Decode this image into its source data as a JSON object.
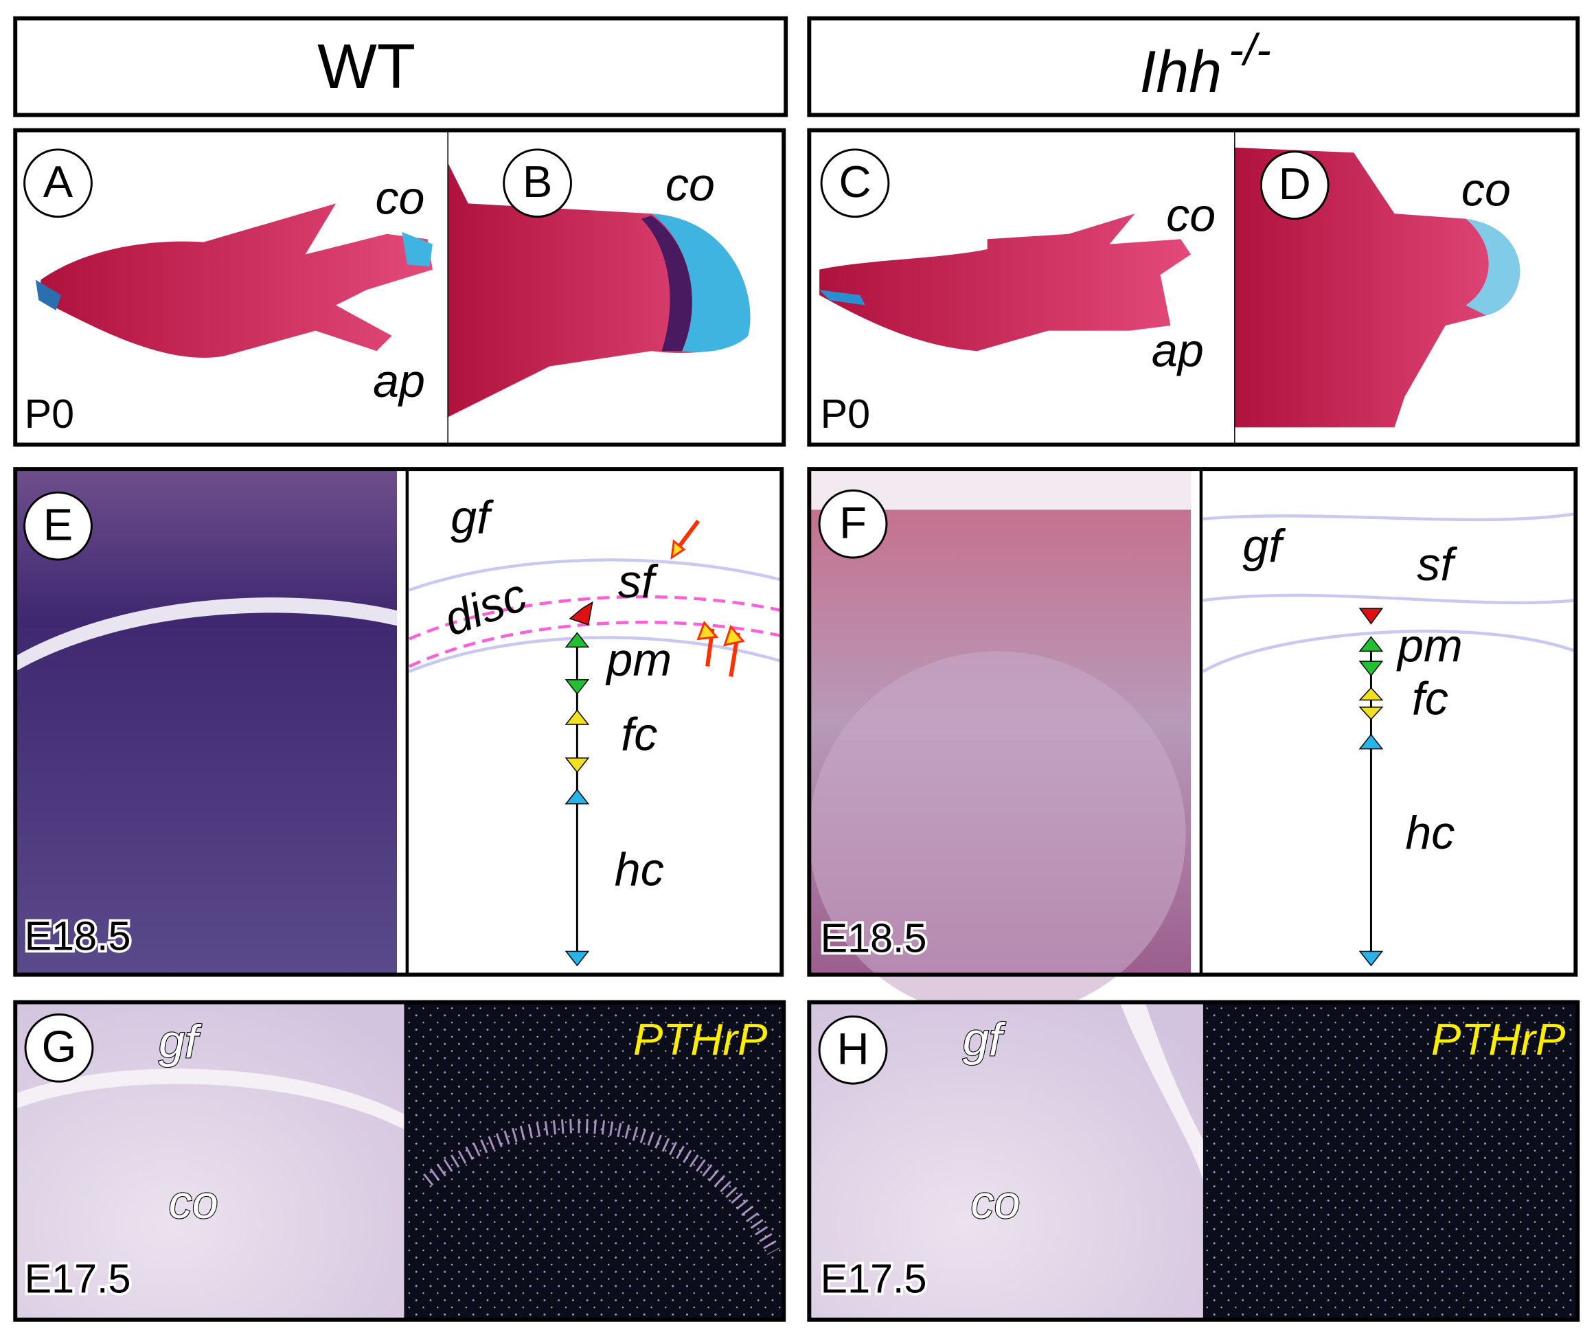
{
  "header": {
    "left": "WT",
    "right_gene": "Ihh",
    "right_genotype": "-/-"
  },
  "panels": {
    "A": {
      "letter": "A",
      "labels": [
        "co",
        "ap"
      ],
      "stage": "P0"
    },
    "B": {
      "letter": "B",
      "labels": [
        "co"
      ]
    },
    "C": {
      "letter": "C",
      "labels": [
        "co",
        "ap"
      ],
      "stage": "P0"
    },
    "D": {
      "letter": "D",
      "labels": [
        "co"
      ]
    },
    "E": {
      "letter": "E",
      "stage": "E18.5",
      "diagram": [
        "gf",
        "disc",
        "sf",
        "pm",
        "fc",
        "hc"
      ]
    },
    "F": {
      "letter": "F",
      "stage": "E18.5",
      "diagram": [
        "gf",
        "sf",
        "pm",
        "fc",
        "hc"
      ]
    },
    "G": {
      "letter": "G",
      "labels": [
        "gf",
        "co"
      ],
      "stage": "E17.5",
      "probe": "PTHrP"
    },
    "H": {
      "letter": "H",
      "labels": [
        "gf",
        "co"
      ],
      "stage": "E17.5",
      "probe": "PTHrP"
    }
  }
}
